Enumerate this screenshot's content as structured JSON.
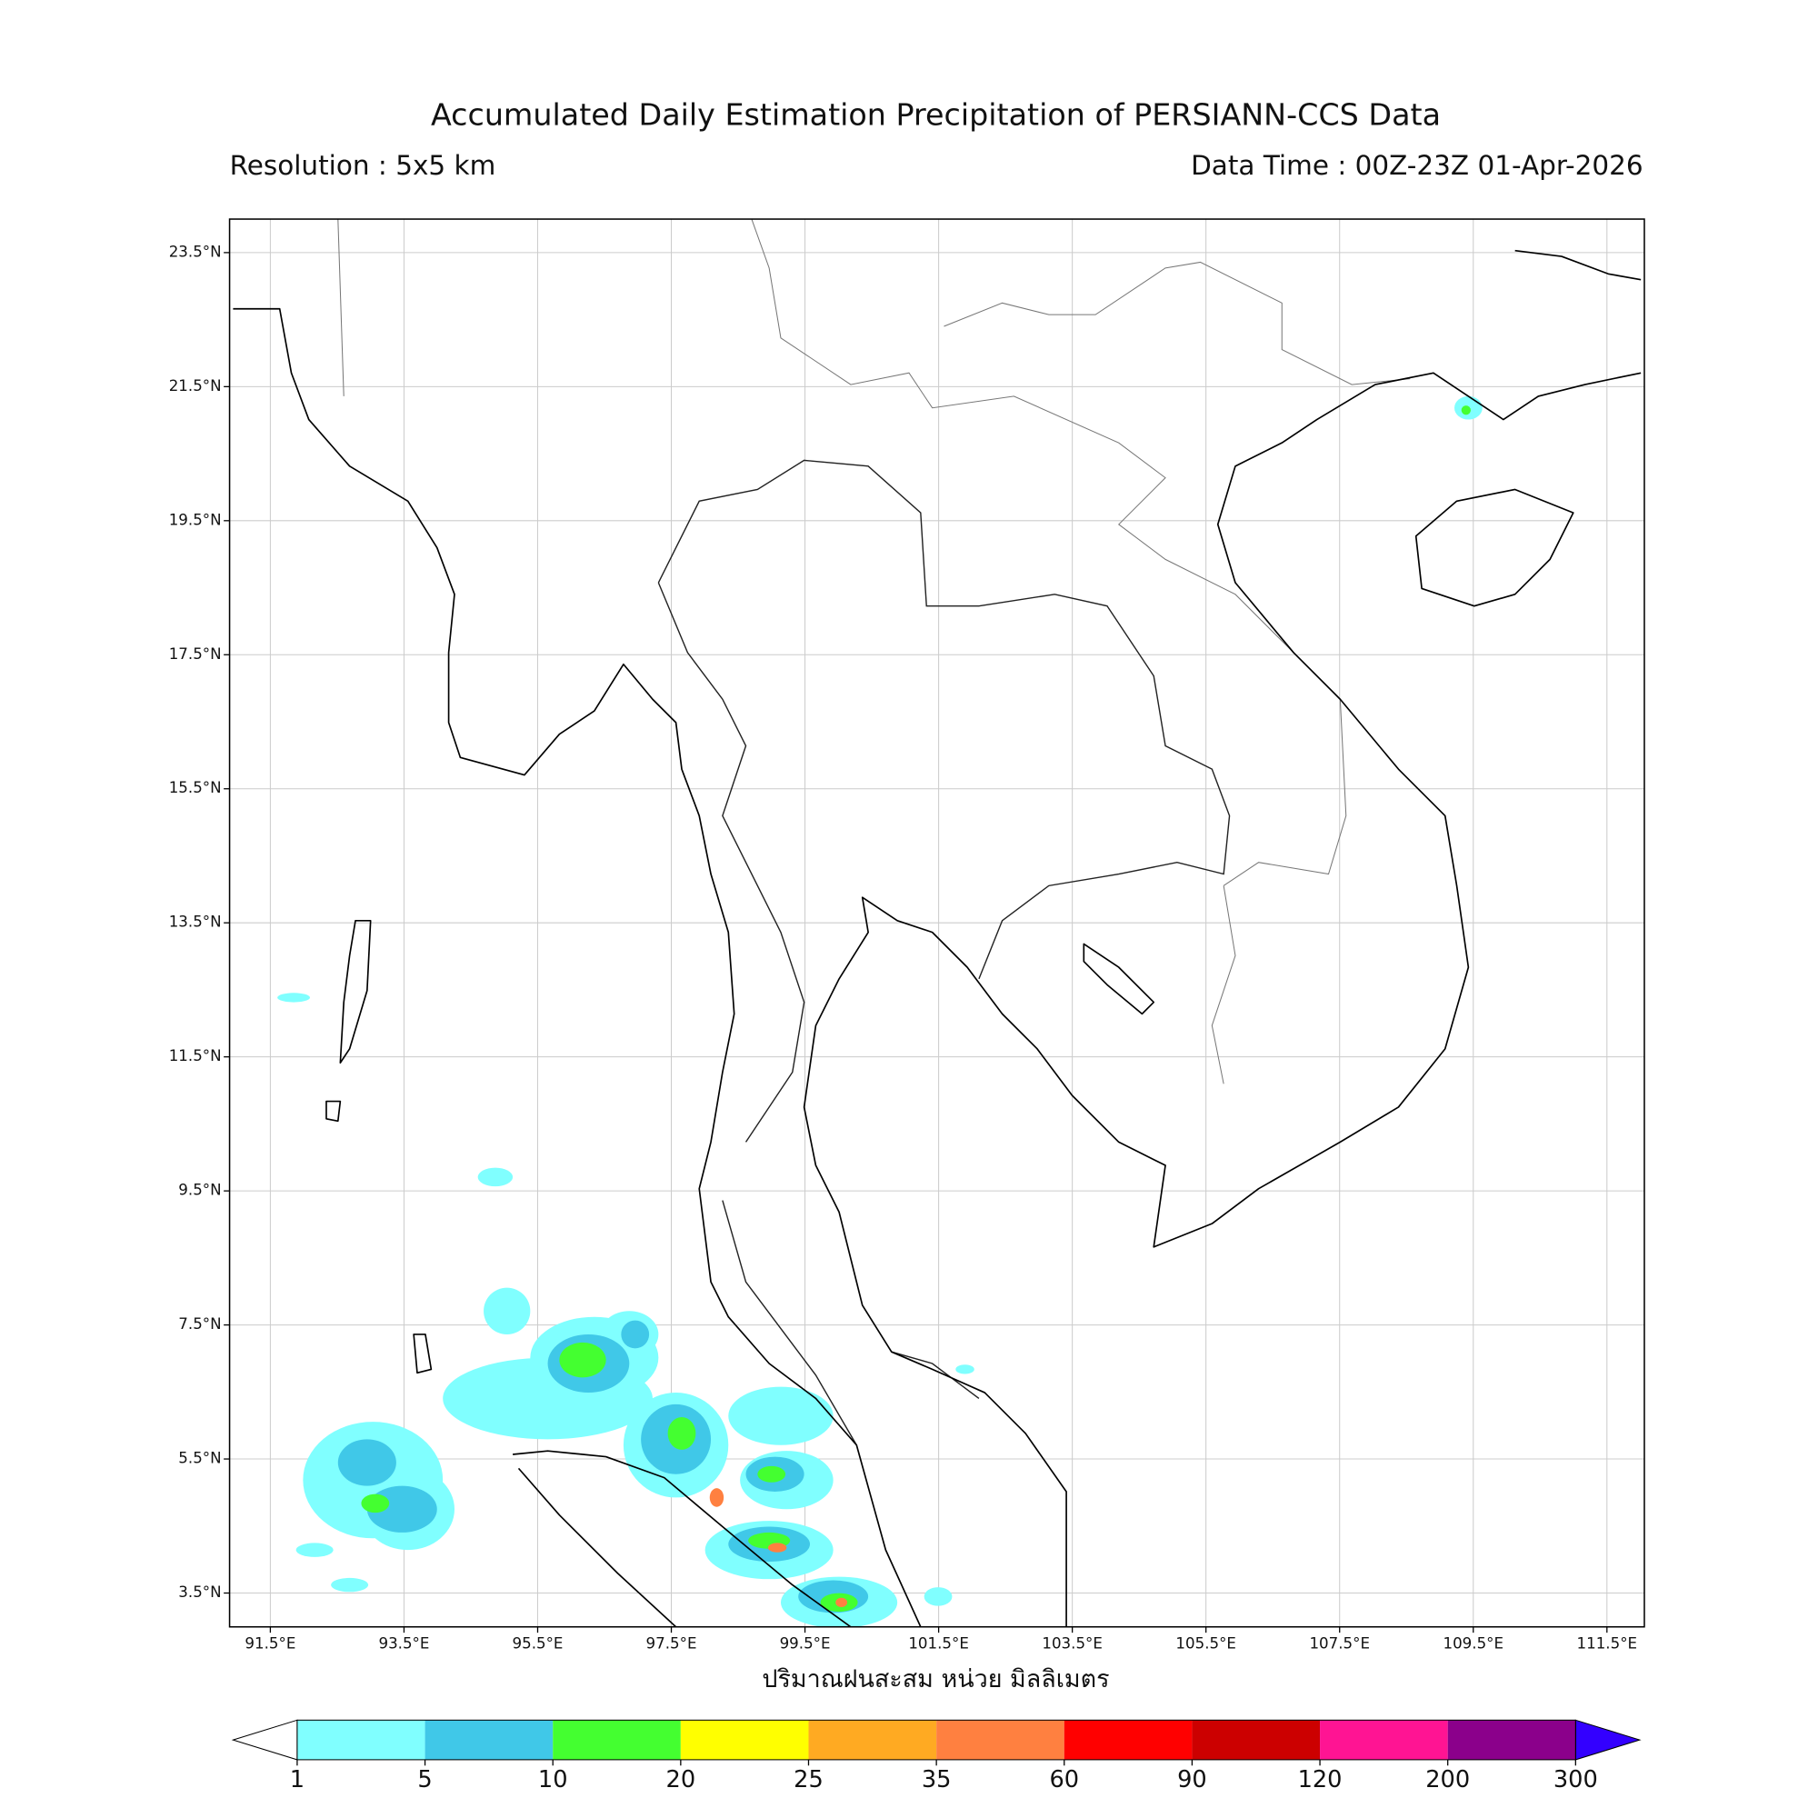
{
  "header": {
    "title": "Accumulated Daily Estimation Precipitation of PERSIANN-CCS Data",
    "resolution": "Resolution : 5x5 km",
    "data_time": "Data Time : 00Z-23Z 01-Apr-2026"
  },
  "map": {
    "xlim": [
      90.89,
      112.06
    ],
    "ylim": [
      2.995,
      24.0
    ],
    "grid": true,
    "xticks": [
      {
        "value": 91.5,
        "label": "91.5°E"
      },
      {
        "value": 93.5,
        "label": "93.5°E"
      },
      {
        "value": 95.5,
        "label": "95.5°E"
      },
      {
        "value": 97.5,
        "label": "97.5°E"
      },
      {
        "value": 99.5,
        "label": "99.5°E"
      },
      {
        "value": 101.5,
        "label": "101.5°E"
      },
      {
        "value": 103.5,
        "label": "103.5°E"
      },
      {
        "value": 105.5,
        "label": "105.5°E"
      },
      {
        "value": 107.5,
        "label": "107.5°E"
      },
      {
        "value": 109.5,
        "label": "109.5°E"
      },
      {
        "value": 111.5,
        "label": "111.5°E"
      }
    ],
    "yticks": [
      {
        "value": 23.5,
        "label": "23.5°N"
      },
      {
        "value": 21.5,
        "label": "21.5°N"
      },
      {
        "value": 19.5,
        "label": "19.5°N"
      },
      {
        "value": 17.5,
        "label": "17.5°N"
      },
      {
        "value": 15.5,
        "label": "15.5°N"
      },
      {
        "value": 13.5,
        "label": "13.5°N"
      },
      {
        "value": 11.5,
        "label": "11.5°N"
      },
      {
        "value": 9.5,
        "label": "9.5°N"
      },
      {
        "value": 7.5,
        "label": "7.5°N"
      },
      {
        "value": 5.5,
        "label": "5.5°N"
      },
      {
        "value": 3.5,
        "label": "3.5°N"
      }
    ]
  },
  "colorbar": {
    "label": "ปริมาณฝนสะสม หน่วย มิลลิเมตร",
    "ticks": [
      1,
      5,
      10,
      20,
      25,
      35,
      60,
      90,
      120,
      200,
      300
    ],
    "colors": [
      "#80ffff",
      "#40c8e8",
      "#44ff30",
      "#ffff00",
      "#ffaa22",
      "#ff8040",
      "#ff0000",
      "#cc0000",
      "#ff1493",
      "#8b008b"
    ],
    "under_color": "#ffffff",
    "over_color": "#3300ff"
  }
}
